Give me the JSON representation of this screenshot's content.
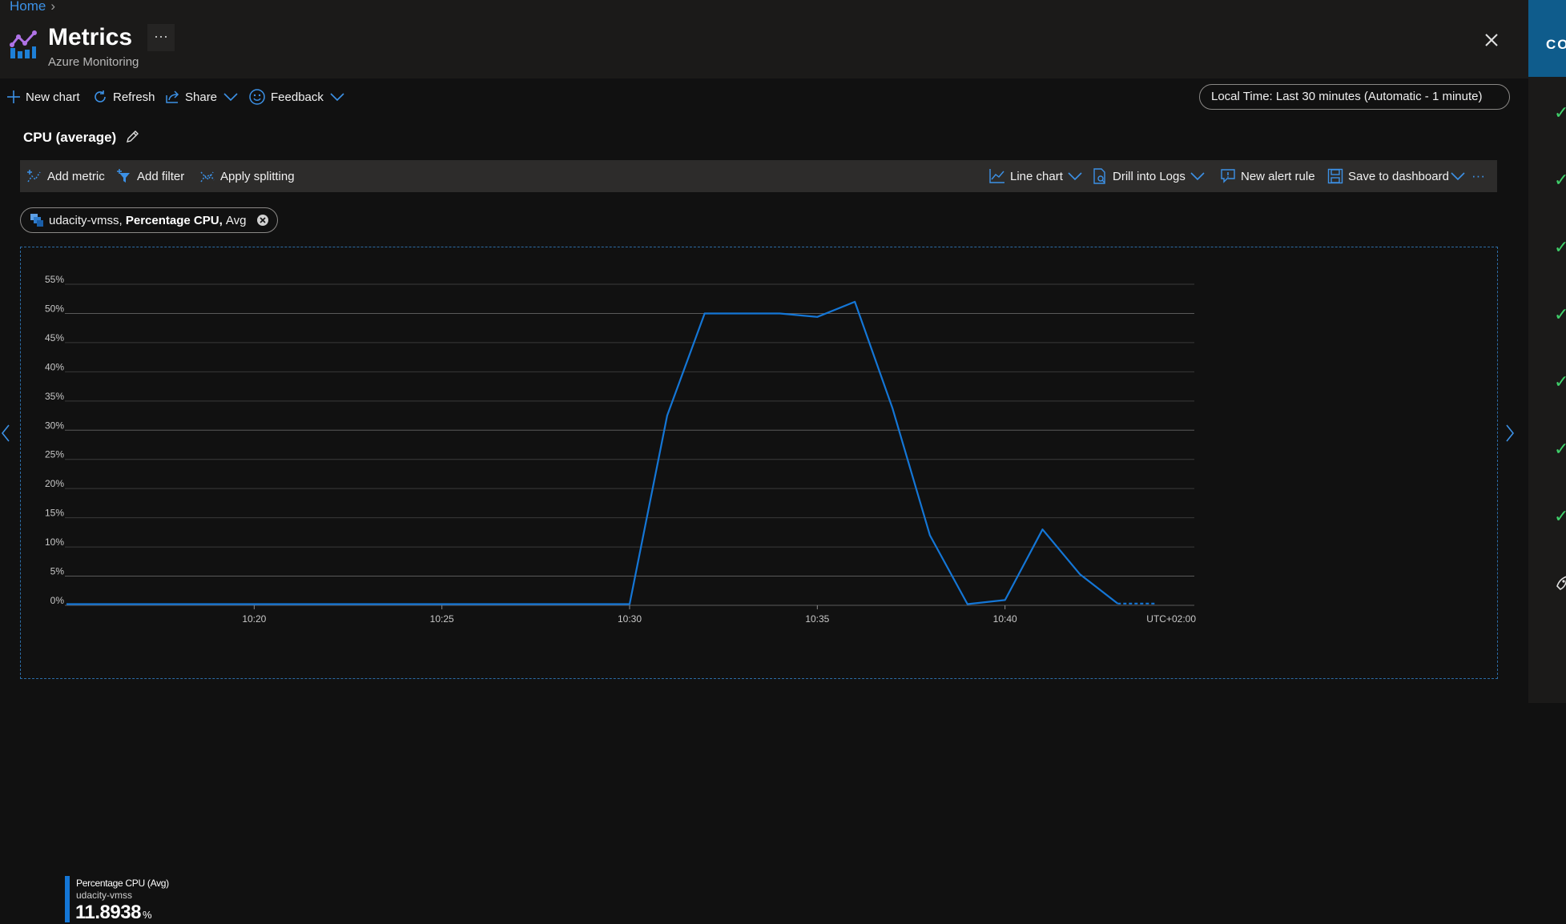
{
  "breadcrumb": {
    "home": "Home"
  },
  "header": {
    "title": "Metrics",
    "subtitle": "Azure Monitoring",
    "more": "···"
  },
  "commands": {
    "new_chart": "New chart",
    "refresh": "Refresh",
    "share": "Share",
    "feedback": "Feedback",
    "time_range": "Local Time: Last 30 minutes (Automatic - 1 minute)"
  },
  "chart": {
    "title": "CPU (average)"
  },
  "toolbar": {
    "add_metric": "Add metric",
    "add_filter": "Add filter",
    "apply_splitting": "Apply splitting",
    "line_chart": "Line chart",
    "drill_into_logs": "Drill into Logs",
    "new_alert_rule": "New alert rule",
    "save_to_dashboard": "Save to dashboard",
    "more": "···"
  },
  "metric_pill": {
    "resource": "udacity-vmss,",
    "metric": "Percentage CPU,",
    "aggregation": "Avg"
  },
  "right_panel": {
    "label": "CO"
  },
  "colors": {
    "accent": "#1476d6",
    "link": "#3c91e6",
    "check": "#3fcf6a"
  },
  "chart_data": {
    "type": "line",
    "timezone_label": "UTC+02:00",
    "y_ticks": [
      "0%",
      "5%",
      "10%",
      "15%",
      "20%",
      "25%",
      "30%",
      "35%",
      "40%",
      "45%",
      "50%",
      "55%"
    ],
    "ylim": [
      0,
      55
    ],
    "x_ticks": [
      "10:20",
      "10:25",
      "10:30",
      "10:35",
      "10:40"
    ],
    "x_range": [
      "10:15",
      "10:45"
    ],
    "series": [
      {
        "name": "Percentage CPU (Avg)",
        "resource": "udacity-vmss",
        "summary_value": "11.8938",
        "unit": "%",
        "x": [
          "10:15",
          "10:16",
          "10:17",
          "10:18",
          "10:19",
          "10:20",
          "10:21",
          "10:22",
          "10:23",
          "10:24",
          "10:25",
          "10:26",
          "10:27",
          "10:28",
          "10:29",
          "10:30",
          "10:31",
          "10:32",
          "10:33",
          "10:34",
          "10:35",
          "10:36",
          "10:37",
          "10:38",
          "10:39",
          "10:40",
          "10:41",
          "10:42",
          "10:43",
          "10:44"
        ],
        "values": [
          0.2,
          0.2,
          0.2,
          0.2,
          0.2,
          0.2,
          0.2,
          0.2,
          0.2,
          0.2,
          0.2,
          0.2,
          0.2,
          0.2,
          0.2,
          0.2,
          32.5,
          50,
          50,
          50,
          49.4,
          52,
          33.8,
          12,
          0.2,
          0.9,
          13,
          5.3,
          0.3,
          0.3
        ]
      }
    ]
  }
}
